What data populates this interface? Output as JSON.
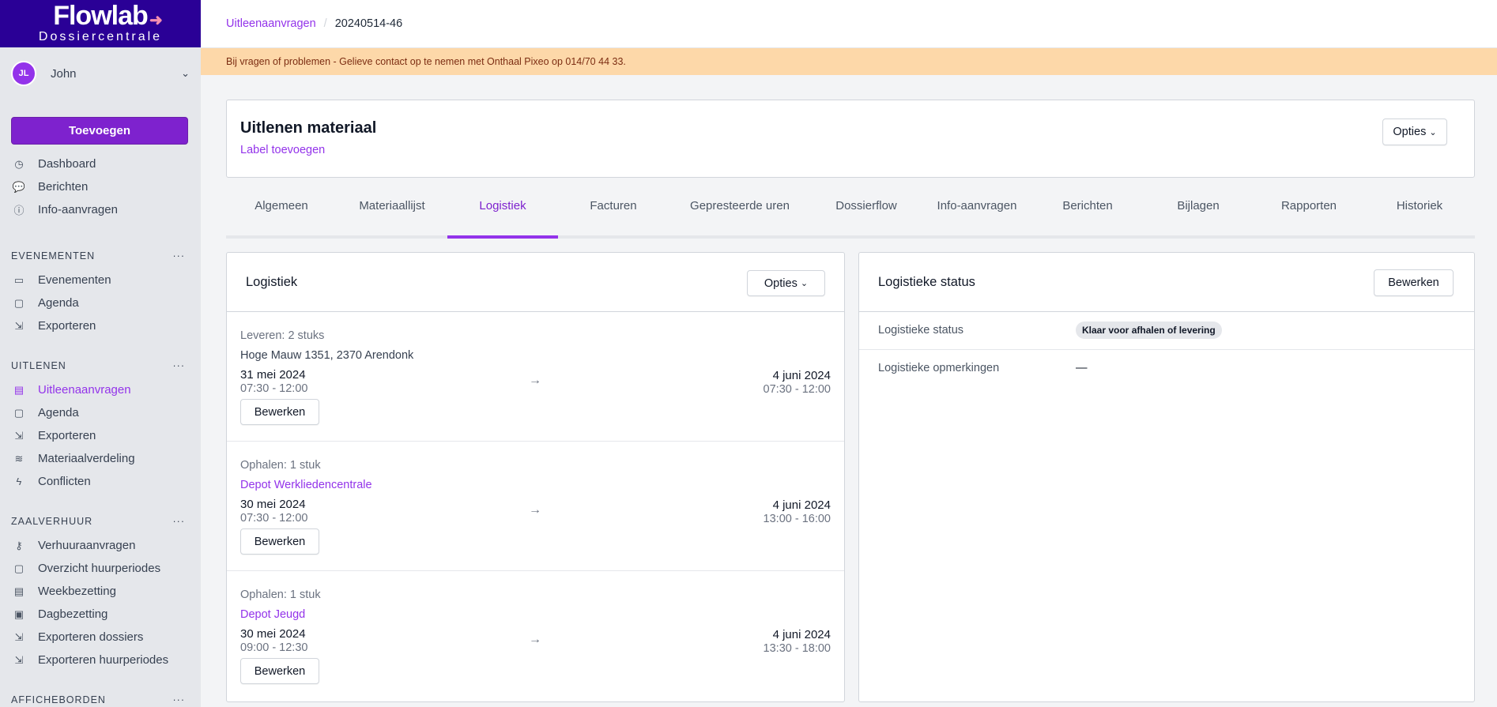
{
  "brand": {
    "name": "Flowlab",
    "subtitle": "Dossiercentrale",
    "color": "#2a0096",
    "accent": "#9333ea"
  },
  "user": {
    "initials": "JL",
    "name": "John"
  },
  "sidebar": {
    "add_label": "Toevoegen",
    "top_items": [
      {
        "label": "Dashboard",
        "icon": "dashboard-icon"
      },
      {
        "label": "Berichten",
        "icon": "chat-icon"
      },
      {
        "label": "Info-aanvragen",
        "icon": "info-icon"
      }
    ],
    "sections": [
      {
        "title": "EVENEMENTEN",
        "items": [
          {
            "label": "Evenementen"
          },
          {
            "label": "Agenda"
          },
          {
            "label": "Exporteren"
          }
        ]
      },
      {
        "title": "UITLENEN",
        "items": [
          {
            "label": "Uitleenaanvragen",
            "active": true
          },
          {
            "label": "Agenda"
          },
          {
            "label": "Exporteren"
          },
          {
            "label": "Materiaalverdeling"
          },
          {
            "label": "Conflicten"
          }
        ]
      },
      {
        "title": "ZAALVERHUUR",
        "items": [
          {
            "label": "Verhuuraanvragen"
          },
          {
            "label": "Overzicht huurperiodes"
          },
          {
            "label": "Weekbezetting"
          },
          {
            "label": "Dagbezetting"
          },
          {
            "label": "Exporteren dossiers"
          },
          {
            "label": "Exporteren huurperiodes"
          }
        ]
      },
      {
        "title": "AFFICHEBORDEN",
        "items": []
      }
    ],
    "more": "···"
  },
  "breadcrumb": {
    "parent": "Uitleenaanvragen",
    "separator": "/",
    "current": "20240514-46"
  },
  "banner": "Bij vragen of problemen - Gelieve contact op te nemen met Onthaal Pixeo op 014/70 44 33.",
  "header": {
    "title": "Uitlenen materiaal",
    "add_label": "Label toevoegen",
    "options": "Opties"
  },
  "tabs": [
    "Algemeen",
    "Materiaallijst",
    "Logistiek",
    "Facturen",
    "Gepresteerde uren",
    "Dossierflow",
    "Info-aanvragen",
    "Berichten",
    "Bijlagen",
    "Rapporten",
    "Historiek"
  ],
  "active_tab": "Logistiek",
  "logistics": {
    "title": "Logistiek",
    "options": "Opties",
    "arrow": "→",
    "edit": "Bewerken",
    "rows": [
      {
        "kind": "Leveren: 2 stuks",
        "location": "Hoge Mauw 1351, 2370 Arendonk",
        "link": false,
        "start_date": "31 mei 2024",
        "start_time": "07:30 - 12:00",
        "end_date": "4 juni 2024",
        "end_time": "07:30 - 12:00"
      },
      {
        "kind": "Ophalen: 1 stuk",
        "location": "Depot Werkliedencentrale",
        "link": true,
        "start_date": "30 mei 2024",
        "start_time": "07:30 - 12:00",
        "end_date": "4 juni 2024",
        "end_time": "13:00 - 16:00"
      },
      {
        "kind": "Ophalen: 1 stuk",
        "location": "Depot Jeugd",
        "link": true,
        "start_date": "30 mei 2024",
        "start_time": "09:00 - 12:30",
        "end_date": "4 juni 2024",
        "end_time": "13:30 - 18:00"
      }
    ]
  },
  "status": {
    "title": "Logistieke status",
    "edit": "Bewerken",
    "status_label": "Logistieke status",
    "status_value": "Klaar voor afhalen of levering",
    "remarks_label": "Logistieke opmerkingen",
    "remarks_value": "—"
  }
}
